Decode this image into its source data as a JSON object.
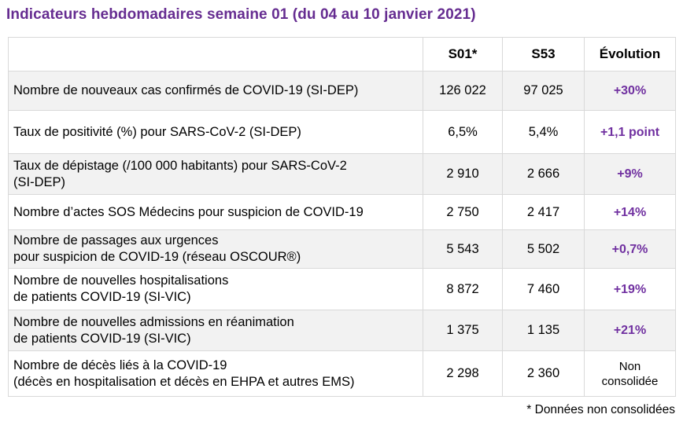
{
  "title": "Indicateurs hebdomadaires semaine 01 (du 04 au 10 janvier 2021)",
  "table": {
    "headers": {
      "label": "",
      "s01": "S01*",
      "s53": "S53",
      "evolution": "Évolution"
    },
    "rows": [
      {
        "label": "Nombre de nouveaux cas confirmés de COVID-19 (SI-DEP)",
        "s01": "126 022",
        "s53": "97 025",
        "evolution": "+30%"
      },
      {
        "label": "Taux de positivité (%) pour SARS-CoV-2 (SI-DEP)",
        "s01": "6,5%",
        "s53": "5,4%",
        "evolution": "+1,1 point"
      },
      {
        "label": "Taux de dépistage (/100 000 habitants) pour SARS-CoV-2\n(SI-DEP)",
        "s01": "2 910",
        "s53": "2 666",
        "evolution": "+9%"
      },
      {
        "label": "Nombre d’actes SOS Médecins pour suspicion de COVID-19",
        "s01": "2 750",
        "s53": "2 417",
        "evolution": "+14%"
      },
      {
        "label": "Nombre de passages aux urgences\npour suspicion de COVID-19 (réseau OSCOUR®)",
        "s01": "5 543",
        "s53": "5 502",
        "evolution": "+0,7%"
      },
      {
        "label": "Nombre de nouvelles hospitalisations\nde patients COVID-19 (SI-VIC)",
        "s01": "8 872",
        "s53": "7 460",
        "evolution": "+19%"
      },
      {
        "label": "Nombre de nouvelles admissions en réanimation\nde patients COVID-19 (SI-VIC)",
        "s01": "1 375",
        "s53": "1 135",
        "evolution": "+21%"
      },
      {
        "label": "Nombre de décès liés à la COVID-19\n(décès en hospitalisation et décès en EHPA et autres EMS)",
        "s01": "2 298",
        "s53": "2 360",
        "evolution": "Non\nconsolidée"
      }
    ]
  },
  "footnote": "* Données non consolidées",
  "colors": {
    "title_purple": "#662D91",
    "evolution_purple": "#7030A0",
    "row_shade": "#F2F2F2",
    "border": "#D9D9D9"
  }
}
